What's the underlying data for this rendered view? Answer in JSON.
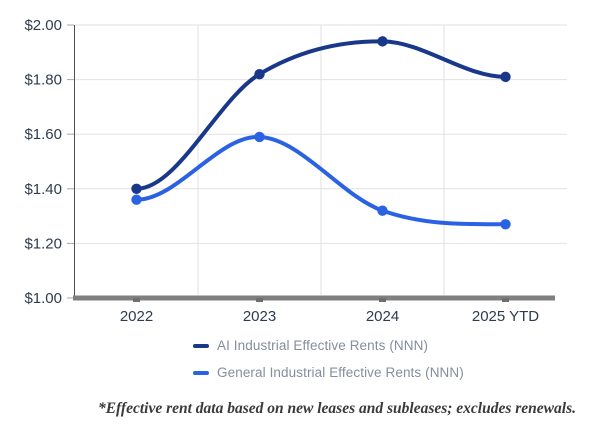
{
  "chart_data": {
    "type": "line",
    "title": "",
    "xlabel": "",
    "ylabel": "",
    "categories": [
      "2022",
      "2023",
      "2024",
      "2025 YTD"
    ],
    "series": [
      {
        "name": "AI Industrial Effective Rents (NNN)",
        "color": "#19388a",
        "values": [
          1.4,
          1.82,
          1.94,
          1.81
        ]
      },
      {
        "name": "General Industrial Effective Rents (NNN)",
        "color": "#2b62e4",
        "values": [
          1.36,
          1.59,
          1.32,
          1.27
        ]
      }
    ],
    "ylim": [
      1.0,
      2.0
    ],
    "yticks": [
      {
        "value": 2.0,
        "label": "$2.00"
      },
      {
        "value": 1.8,
        "label": "$1.80"
      },
      {
        "value": 1.6,
        "label": "$1.60"
      },
      {
        "value": 1.4,
        "label": "$1.40"
      },
      {
        "value": 1.2,
        "label": "$1.20"
      },
      {
        "value": 1.0,
        "label": "$1.00"
      }
    ],
    "grid": true,
    "legend_position": "bottom"
  },
  "footnote": "*Effective rent data based on new leases and subleases; excludes renewals."
}
